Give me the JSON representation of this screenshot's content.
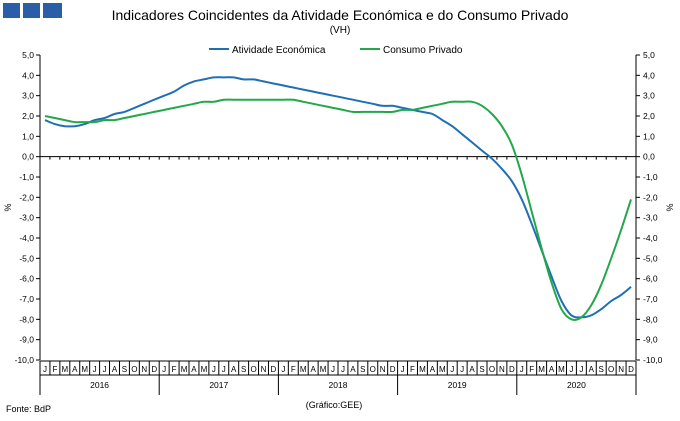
{
  "colors": {
    "logo": "#2a5ea8",
    "series1": "#1f6fb4",
    "series2": "#22a84a",
    "text": "#000000",
    "axis": "#000000"
  },
  "chart_data": {
    "type": "line",
    "title": "Indicadores Coincidentes da Atividade Económica e do Consumo Privado",
    "subtitle": "(VH)",
    "ylabel_left": "%",
    "ylabel_right": "%",
    "ylim": [
      -10,
      5
    ],
    "yticks": [
      "5,0",
      "4,0",
      "3,0",
      "2,0",
      "1,0",
      "0,0",
      "-1,0",
      "-2,0",
      "-3,0",
      "-4,0",
      "-5,0",
      "-6,0",
      "-7,0",
      "-8,0",
      "-9,0",
      "-10,0"
    ],
    "month_labels": [
      "J",
      "F",
      "M",
      "A",
      "M",
      "J",
      "J",
      "A",
      "S",
      "O",
      "N",
      "D"
    ],
    "years": [
      "2016",
      "2017",
      "2018",
      "2019",
      "2020"
    ],
    "legend_position": "top-center",
    "grid": false,
    "series": [
      {
        "name": "Atividade Económica",
        "values": [
          1.8,
          1.6,
          1.5,
          1.5,
          1.6,
          1.8,
          1.9,
          2.1,
          2.2,
          2.4,
          2.6,
          2.8,
          3.0,
          3.2,
          3.5,
          3.7,
          3.8,
          3.9,
          3.9,
          3.9,
          3.8,
          3.8,
          3.7,
          3.6,
          3.5,
          3.4,
          3.3,
          3.2,
          3.1,
          3.0,
          2.9,
          2.8,
          2.7,
          2.6,
          2.5,
          2.5,
          2.4,
          2.3,
          2.2,
          2.1,
          1.8,
          1.5,
          1.1,
          0.7,
          0.3,
          -0.1,
          -0.6,
          -1.2,
          -2.1,
          -3.3,
          -4.6,
          -5.9,
          -7.1,
          -7.8,
          -7.9,
          -7.8,
          -7.5,
          -7.1,
          -6.8,
          -6.4
        ]
      },
      {
        "name": "Consumo Privado",
        "values": [
          2.0,
          1.9,
          1.8,
          1.7,
          1.7,
          1.7,
          1.8,
          1.8,
          1.9,
          2.0,
          2.1,
          2.2,
          2.3,
          2.4,
          2.5,
          2.6,
          2.7,
          2.7,
          2.8,
          2.8,
          2.8,
          2.8,
          2.8,
          2.8,
          2.8,
          2.8,
          2.7,
          2.6,
          2.5,
          2.4,
          2.3,
          2.2,
          2.2,
          2.2,
          2.2,
          2.2,
          2.3,
          2.3,
          2.4,
          2.5,
          2.6,
          2.7,
          2.7,
          2.7,
          2.5,
          2.1,
          1.5,
          0.6,
          -0.9,
          -2.7,
          -4.5,
          -6.2,
          -7.5,
          -8.0,
          -7.9,
          -7.3,
          -6.3,
          -5.0,
          -3.6,
          -2.1
        ]
      }
    ]
  },
  "footer": {
    "source": "Fonte: BdP",
    "credit": "(Gráfico:GEE)"
  }
}
